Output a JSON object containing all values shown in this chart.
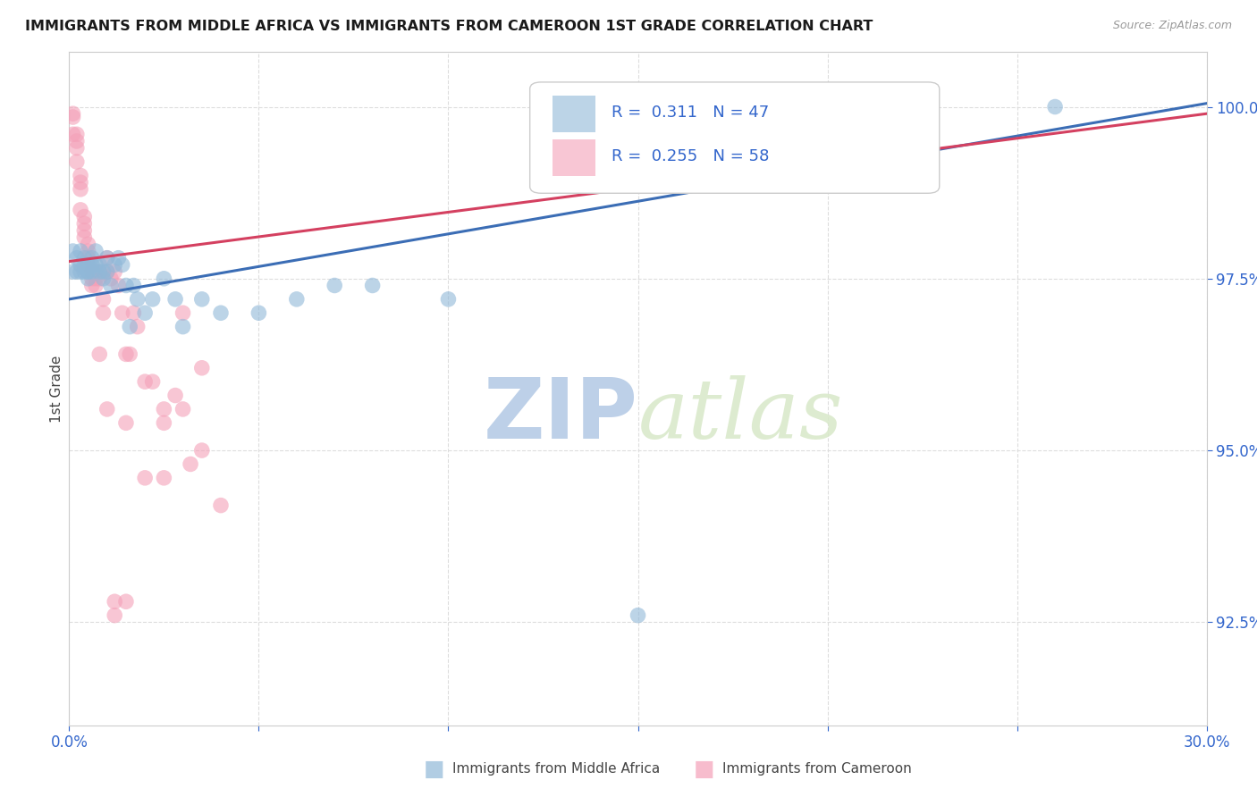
{
  "title": "IMMIGRANTS FROM MIDDLE AFRICA VS IMMIGRANTS FROM CAMEROON 1ST GRADE CORRELATION CHART",
  "source": "Source: ZipAtlas.com",
  "ylabel": "1st Grade",
  "xlim": [
    0.0,
    0.3
  ],
  "ylim": [
    0.91,
    1.008
  ],
  "xticks": [
    0.0,
    0.05,
    0.1,
    0.15,
    0.2,
    0.25,
    0.3
  ],
  "xticklabels": [
    "0.0%",
    "",
    "",
    "",
    "",
    "",
    "30.0%"
  ],
  "yticks": [
    0.925,
    0.95,
    0.975,
    1.0
  ],
  "yticklabels": [
    "92.5%",
    "95.0%",
    "97.5%",
    "100.0%"
  ],
  "blue_color": "#90B8D8",
  "pink_color": "#F4A0B8",
  "blue_line_color": "#3B6DB5",
  "pink_line_color": "#D44060",
  "blue_R": "0.311",
  "blue_N": "47",
  "pink_R": "0.255",
  "pink_N": "58",
  "blue_scatter_x": [
    0.001,
    0.001,
    0.002,
    0.002,
    0.003,
    0.003,
    0.003,
    0.004,
    0.004,
    0.004,
    0.005,
    0.005,
    0.005,
    0.005,
    0.006,
    0.006,
    0.006,
    0.007,
    0.007,
    0.008,
    0.008,
    0.009,
    0.009,
    0.01,
    0.01,
    0.011,
    0.012,
    0.013,
    0.014,
    0.015,
    0.016,
    0.017,
    0.018,
    0.02,
    0.022,
    0.025,
    0.028,
    0.03,
    0.035,
    0.04,
    0.05,
    0.06,
    0.07,
    0.08,
    0.1,
    0.15,
    0.26
  ],
  "blue_scatter_y": [
    0.979,
    0.976,
    0.978,
    0.976,
    0.979,
    0.977,
    0.976,
    0.978,
    0.977,
    0.976,
    0.977,
    0.976,
    0.975,
    0.976,
    0.978,
    0.977,
    0.976,
    0.979,
    0.977,
    0.976,
    0.977,
    0.976,
    0.975,
    0.978,
    0.976,
    0.974,
    0.977,
    0.978,
    0.977,
    0.974,
    0.968,
    0.974,
    0.972,
    0.97,
    0.972,
    0.975,
    0.972,
    0.968,
    0.972,
    0.97,
    0.97,
    0.972,
    0.974,
    0.974,
    0.972,
    0.926,
    1.0
  ],
  "pink_scatter_x": [
    0.001,
    0.001,
    0.001,
    0.002,
    0.002,
    0.002,
    0.002,
    0.003,
    0.003,
    0.003,
    0.003,
    0.004,
    0.004,
    0.004,
    0.004,
    0.005,
    0.005,
    0.005,
    0.005,
    0.006,
    0.006,
    0.006,
    0.007,
    0.007,
    0.007,
    0.008,
    0.008,
    0.009,
    0.009,
    0.01,
    0.01,
    0.011,
    0.012,
    0.013,
    0.014,
    0.015,
    0.016,
    0.017,
    0.018,
    0.02,
    0.022,
    0.025,
    0.025,
    0.028,
    0.03,
    0.032,
    0.035,
    0.04,
    0.012,
    0.015,
    0.02,
    0.025,
    0.03,
    0.008,
    0.01,
    0.012,
    0.015,
    0.035
  ],
  "pink_scatter_y": [
    0.999,
    0.9985,
    0.996,
    0.996,
    0.995,
    0.994,
    0.992,
    0.99,
    0.989,
    0.988,
    0.985,
    0.984,
    0.983,
    0.982,
    0.981,
    0.98,
    0.979,
    0.978,
    0.977,
    0.976,
    0.975,
    0.974,
    0.976,
    0.975,
    0.974,
    0.976,
    0.975,
    0.972,
    0.97,
    0.978,
    0.976,
    0.975,
    0.976,
    0.974,
    0.97,
    0.964,
    0.964,
    0.97,
    0.968,
    0.96,
    0.96,
    0.956,
    0.954,
    0.958,
    0.956,
    0.948,
    0.95,
    0.942,
    0.926,
    0.954,
    0.946,
    0.946,
    0.97,
    0.964,
    0.956,
    0.928,
    0.928,
    0.962
  ],
  "watermark_zip": "ZIP",
  "watermark_atlas": "atlas",
  "watermark_color": "#CCDDEEFF",
  "legend_blue_label": "Immigrants from Middle Africa",
  "legend_pink_label": "Immigrants from Cameroon",
  "background_color": "#FFFFFF",
  "grid_color": "#DDDDDD"
}
